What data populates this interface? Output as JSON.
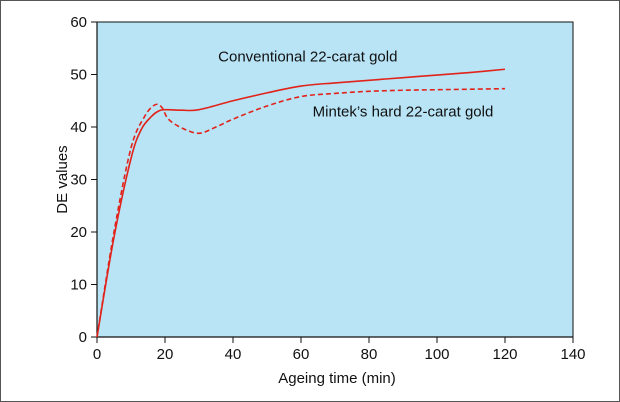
{
  "chart_data": {
    "type": "line",
    "title": "",
    "xlabel": "Ageing time (min)",
    "ylabel": "DE values",
    "xlim": [
      0,
      140
    ],
    "ylim": [
      0,
      60
    ],
    "xticks": [
      0,
      20,
      40,
      60,
      80,
      100,
      120,
      140
    ],
    "yticks": [
      0,
      10,
      20,
      30,
      40,
      50,
      60
    ],
    "grid": false,
    "legend": "none",
    "colors": {
      "plot_background": "#b8e4f6",
      "series_line": "#e2231a",
      "axis": "#111111"
    },
    "series": [
      {
        "name": "Conventional 22-carat gold",
        "style": "solid",
        "x": [
          0,
          5,
          10,
          13,
          16,
          18,
          20,
          25,
          30,
          40,
          50,
          60,
          70,
          80,
          90,
          100,
          110,
          120
        ],
        "y": [
          0,
          19,
          34,
          39.5,
          42,
          43,
          43.3,
          43.2,
          43.3,
          45,
          46.5,
          47.8,
          48.4,
          48.9,
          49.4,
          49.9,
          50.4,
          51
        ]
      },
      {
        "name": "Mintek's hard 22-carat gold",
        "style": "dashed",
        "x": [
          0,
          5,
          10,
          14,
          17,
          19,
          21,
          25,
          30,
          35,
          40,
          50,
          60,
          70,
          80,
          90,
          100,
          110,
          120
        ],
        "y": [
          0,
          20,
          36,
          42,
          44.2,
          43.8,
          41.5,
          39.8,
          38.8,
          40,
          41.5,
          44,
          45.8,
          46.4,
          46.8,
          47,
          47.1,
          47.2,
          47.3
        ]
      }
    ],
    "annotations": [
      {
        "text": "Conventional 22-carat gold",
        "x": 62,
        "y": 52.5
      },
      {
        "text": "Mintek’s hard 22-carat gold",
        "x": 90,
        "y": 42
      }
    ]
  }
}
